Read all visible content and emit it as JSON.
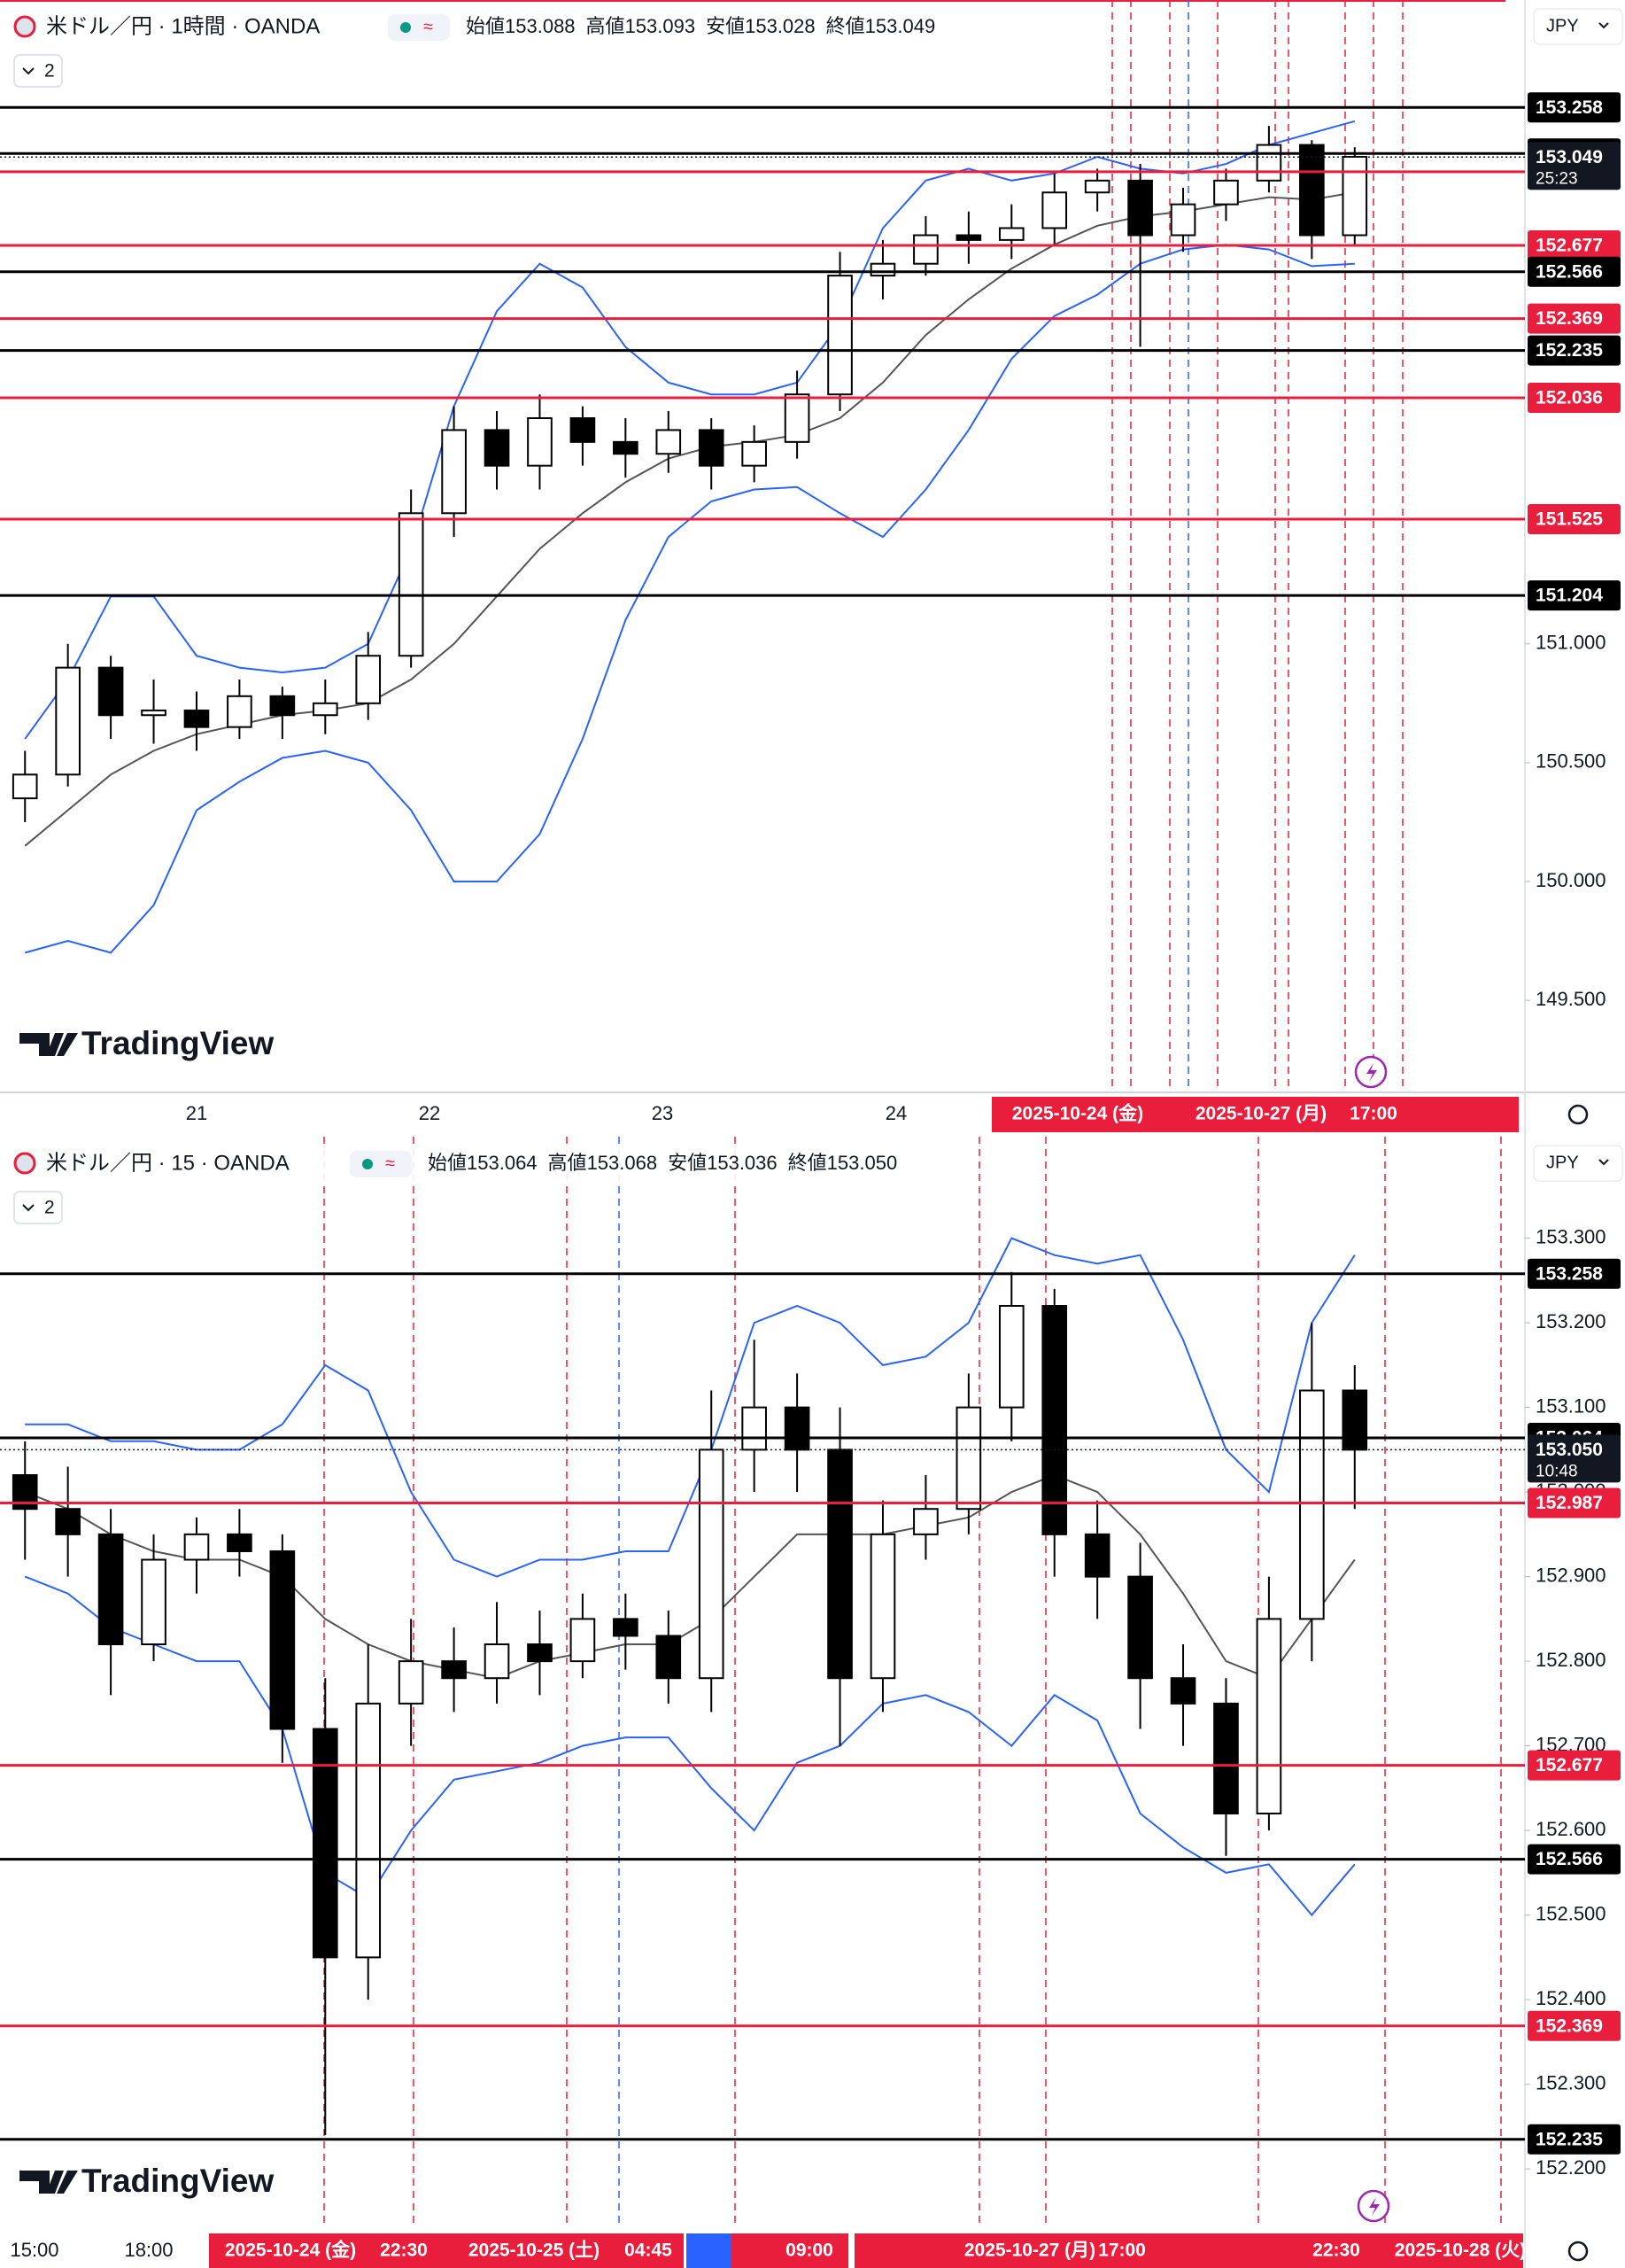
{
  "chart_data": [
    {
      "type": "candlestick",
      "title": "米ドル／円 · 1時間 · OANDA",
      "ohlc_labels": [
        "始値",
        "高値",
        "安値",
        "終値"
      ],
      "ohlc_values": [
        153.088,
        153.093,
        153.028,
        153.049
      ],
      "currency": "JPY",
      "indicator_count": 2,
      "watermark": "TradingView",
      "x_labels": [
        "21",
        "22",
        "23",
        "24"
      ],
      "time_markers": [
        "2025-10-24 (金)",
        "2025-10-27 (月)",
        "17:00"
      ],
      "last_price": 153.049,
      "countdown": "25:23",
      "ylim": [
        149.12,
        153.71
      ],
      "yticks": [
        {
          "value": 149.5,
          "label": "149.500"
        },
        {
          "value": 150,
          "label": "150.000"
        },
        {
          "value": 150.5,
          "label": "150.500"
        },
        {
          "value": 151,
          "label": "151.000"
        }
      ],
      "levels": [
        {
          "value": 153.258,
          "color": "#000000"
        },
        {
          "value": 153.064,
          "color": "#000000"
        },
        {
          "value": 152.987,
          "color": "#e91e3c"
        },
        {
          "value": 152.677,
          "color": "#e91e3c"
        },
        {
          "value": 152.566,
          "color": "#000000"
        },
        {
          "value": 152.369,
          "color": "#e91e3c"
        },
        {
          "value": 152.235,
          "color": "#000000"
        },
        {
          "value": 152.036,
          "color": "#e91e3c"
        },
        {
          "value": 151.525,
          "color": "#e91e3c"
        },
        {
          "value": 151.204,
          "color": "#000000"
        }
      ],
      "open": [
        150.35,
        150.45,
        150.9,
        150.7,
        150.72,
        150.65,
        150.78,
        150.7,
        150.75,
        150.95,
        151.55,
        151.9,
        151.75,
        151.95,
        151.85,
        151.8,
        151.9,
        151.75,
        151.85,
        152.05,
        152.55,
        152.6,
        152.72,
        152.7,
        152.75,
        152.9,
        152.95,
        152.72,
        152.85,
        152.95,
        153.1,
        152.72
      ],
      "high": [
        150.55,
        151.0,
        150.95,
        150.85,
        150.8,
        150.85,
        150.82,
        150.85,
        151.05,
        151.65,
        152.0,
        151.98,
        152.05,
        152.0,
        151.95,
        151.98,
        151.95,
        151.92,
        152.15,
        152.65,
        152.7,
        152.8,
        152.82,
        152.85,
        152.98,
        153.0,
        153.02,
        152.92,
        153.0,
        153.18,
        153.12,
        153.09
      ],
      "low": [
        150.25,
        150.4,
        150.6,
        150.58,
        150.55,
        150.6,
        150.6,
        150.62,
        150.68,
        150.9,
        151.45,
        151.65,
        151.65,
        151.75,
        151.7,
        151.72,
        151.65,
        151.68,
        151.78,
        151.98,
        152.45,
        152.55,
        152.6,
        152.62,
        152.68,
        152.82,
        152.25,
        152.65,
        152.78,
        152.9,
        152.62,
        152.68
      ],
      "close": [
        150.45,
        150.9,
        150.7,
        150.72,
        150.65,
        150.78,
        150.7,
        150.75,
        150.95,
        151.55,
        151.9,
        151.75,
        151.95,
        151.85,
        151.8,
        151.9,
        151.75,
        151.85,
        152.05,
        152.55,
        152.6,
        152.72,
        152.7,
        152.75,
        152.9,
        152.95,
        152.72,
        152.85,
        152.95,
        153.1,
        152.72,
        153.05
      ],
      "bands": {
        "upper": [
          150.6,
          150.85,
          151.2,
          151.2,
          150.95,
          150.9,
          150.88,
          150.9,
          151.0,
          151.4,
          152.0,
          152.4,
          152.6,
          152.5,
          152.25,
          152.1,
          152.05,
          152.05,
          152.1,
          152.35,
          152.75,
          152.95,
          153.0,
          152.95,
          152.98,
          153.05,
          153.0,
          152.98,
          153.02,
          153.1,
          153.15,
          153.2
        ],
        "middle": [
          150.15,
          150.3,
          150.45,
          150.55,
          150.62,
          150.66,
          150.7,
          150.72,
          150.75,
          150.85,
          151.0,
          151.2,
          151.4,
          151.55,
          151.68,
          151.78,
          151.83,
          151.85,
          151.88,
          151.95,
          152.1,
          152.3,
          152.45,
          152.58,
          152.68,
          152.76,
          152.8,
          152.82,
          152.85,
          152.88,
          152.87,
          152.9
        ],
        "lower": [
          149.7,
          149.75,
          149.7,
          149.9,
          150.3,
          150.42,
          150.52,
          150.55,
          150.5,
          150.3,
          150.0,
          150.0,
          150.2,
          150.6,
          151.1,
          151.45,
          151.6,
          151.65,
          151.66,
          151.55,
          151.45,
          151.65,
          151.9,
          152.2,
          152.38,
          152.47,
          152.6,
          152.66,
          152.68,
          152.66,
          152.59,
          152.6
        ]
      }
    },
    {
      "type": "candlestick",
      "title": "米ドル／円 · 15 · OANDA",
      "ohlc_labels": [
        "始値",
        "高値",
        "安値",
        "終値"
      ],
      "ohlc_values": [
        153.064,
        153.068,
        153.036,
        {
          "value": 153.05,
          "label": "153.050"
        }
      ],
      "currency": "JPY",
      "indicator_count": 2,
      "watermark": "TradingView",
      "x_labels": [
        "15:00",
        "18:00"
      ],
      "time_markers": [
        "2025-10-24 (金)",
        "22:30",
        "2025-10-25 (土)",
        "04:45",
        "09:00",
        "2025-10-27 (月)",
        "17:00",
        "22:30",
        "2025-10-28 (火)"
      ],
      "last_price": {
        "value": 153.05,
        "label": "153.050"
      },
      "countdown": "10:48",
      "ylim": [
        152.13,
        153.42
      ],
      "yticks": [
        {
          "value": 152.2,
          "label": "152.200"
        },
        {
          "value": 152.3,
          "label": "152.300"
        },
        {
          "value": 152.4,
          "label": "152.400"
        },
        {
          "value": 152.5,
          "label": "152.500"
        },
        {
          "value": 152.6,
          "label": "152.600"
        },
        {
          "value": 152.7,
          "label": "152.700"
        },
        {
          "value": 152.8,
          "label": "152.800"
        },
        {
          "value": 152.9,
          "label": "152.900"
        },
        {
          "value": 153.0,
          "label": "153.000"
        },
        {
          "value": 153.1,
          "label": "153.100"
        },
        {
          "value": 153.2,
          "label": "153.200"
        },
        {
          "value": 153.3,
          "label": "153.300"
        }
      ],
      "levels": [
        {
          "value": 153.258,
          "color": "#000000"
        },
        {
          "value": 153.064,
          "color": "#000000"
        },
        {
          "value": 152.987,
          "color": "#e91e3c"
        },
        {
          "value": 152.677,
          "color": "#e91e3c"
        },
        {
          "value": 152.566,
          "color": "#000000"
        },
        {
          "value": 152.369,
          "color": "#e91e3c"
        },
        {
          "value": 152.235,
          "color": "#000000"
        }
      ],
      "open": [
        153.02,
        152.98,
        152.95,
        152.82,
        152.92,
        152.95,
        152.93,
        152.72,
        152.45,
        152.75,
        152.8,
        152.78,
        152.82,
        152.8,
        152.85,
        152.83,
        152.78,
        153.05,
        153.1,
        153.05,
        152.78,
        152.95,
        152.98,
        153.1,
        153.22,
        152.95,
        152.9,
        152.78,
        152.75,
        152.62,
        152.85,
        153.12
      ],
      "high": [
        153.06,
        153.03,
        152.98,
        152.95,
        152.97,
        152.98,
        152.95,
        152.78,
        152.82,
        152.85,
        152.84,
        152.87,
        152.86,
        152.88,
        152.88,
        152.86,
        153.12,
        153.18,
        153.14,
        153.1,
        152.99,
        153.02,
        153.14,
        153.26,
        153.24,
        152.99,
        152.94,
        152.82,
        152.78,
        152.9,
        153.2,
        153.15
      ],
      "low": [
        152.92,
        152.9,
        152.76,
        152.8,
        152.88,
        152.9,
        152.68,
        152.24,
        152.4,
        152.7,
        152.74,
        152.75,
        152.76,
        152.78,
        152.79,
        152.75,
        152.74,
        153.0,
        153.0,
        152.7,
        152.74,
        152.92,
        152.95,
        153.06,
        152.9,
        152.85,
        152.72,
        152.7,
        152.57,
        152.6,
        152.8,
        152.98
      ],
      "close": [
        152.98,
        152.95,
        152.82,
        152.92,
        152.95,
        152.93,
        152.72,
        152.45,
        152.75,
        152.8,
        152.78,
        152.82,
        152.8,
        152.85,
        152.83,
        152.78,
        153.05,
        153.1,
        153.05,
        152.78,
        152.95,
        152.98,
        153.1,
        153.22,
        152.95,
        152.9,
        152.78,
        152.75,
        152.62,
        152.85,
        153.12,
        153.05
      ],
      "bands": {
        "upper": [
          153.08,
          153.08,
          153.06,
          153.06,
          153.05,
          153.05,
          153.08,
          153.15,
          153.12,
          153.0,
          152.92,
          152.9,
          152.92,
          152.92,
          152.93,
          152.93,
          153.05,
          153.2,
          153.22,
          153.2,
          153.15,
          153.16,
          153.2,
          153.3,
          153.28,
          153.27,
          153.28,
          153.18,
          153.05,
          153.0,
          153.2,
          153.28
        ],
        "middle": [
          153.0,
          152.98,
          152.95,
          152.93,
          152.92,
          152.92,
          152.9,
          152.85,
          152.82,
          152.8,
          152.79,
          152.78,
          152.8,
          152.81,
          152.82,
          152.82,
          152.85,
          152.9,
          152.95,
          152.95,
          152.95,
          152.96,
          152.97,
          153.0,
          153.02,
          153.0,
          152.95,
          152.88,
          152.8,
          152.78,
          152.85,
          152.92
        ],
        "lower": [
          152.9,
          152.88,
          152.84,
          152.82,
          152.8,
          152.8,
          152.72,
          152.55,
          152.52,
          152.6,
          152.66,
          152.67,
          152.68,
          152.7,
          152.71,
          152.71,
          152.65,
          152.6,
          152.68,
          152.7,
          152.75,
          152.76,
          152.74,
          152.7,
          152.76,
          152.73,
          152.62,
          152.58,
          152.55,
          152.56,
          152.5,
          152.56
        ]
      }
    }
  ]
}
